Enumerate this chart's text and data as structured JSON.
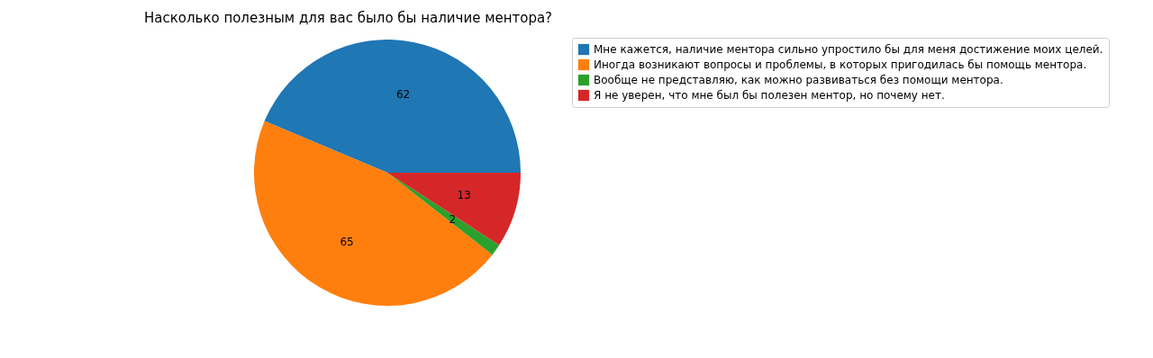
{
  "chart_data": {
    "type": "pie",
    "title": "Насколько полезным для вас было бы наличие ментора?",
    "categories": [
      "Мне кажется, наличие ментора сильно упростило бы для меня достижение моих целей.",
      "Иногда возникают вопросы и проблемы, в которых пригодилась бы помощь ментора.",
      "Вообще не представляю, как можно развиваться без помощи ментора.",
      "Я не уверен, что мне был бы полезен ментор, но почему нет."
    ],
    "values": [
      62,
      65,
      2,
      13
    ],
    "colors": [
      "#1f77b4",
      "#ff7f0e",
      "#2ca02c",
      "#d62728"
    ],
    "data_labels": true,
    "legend": "right"
  }
}
